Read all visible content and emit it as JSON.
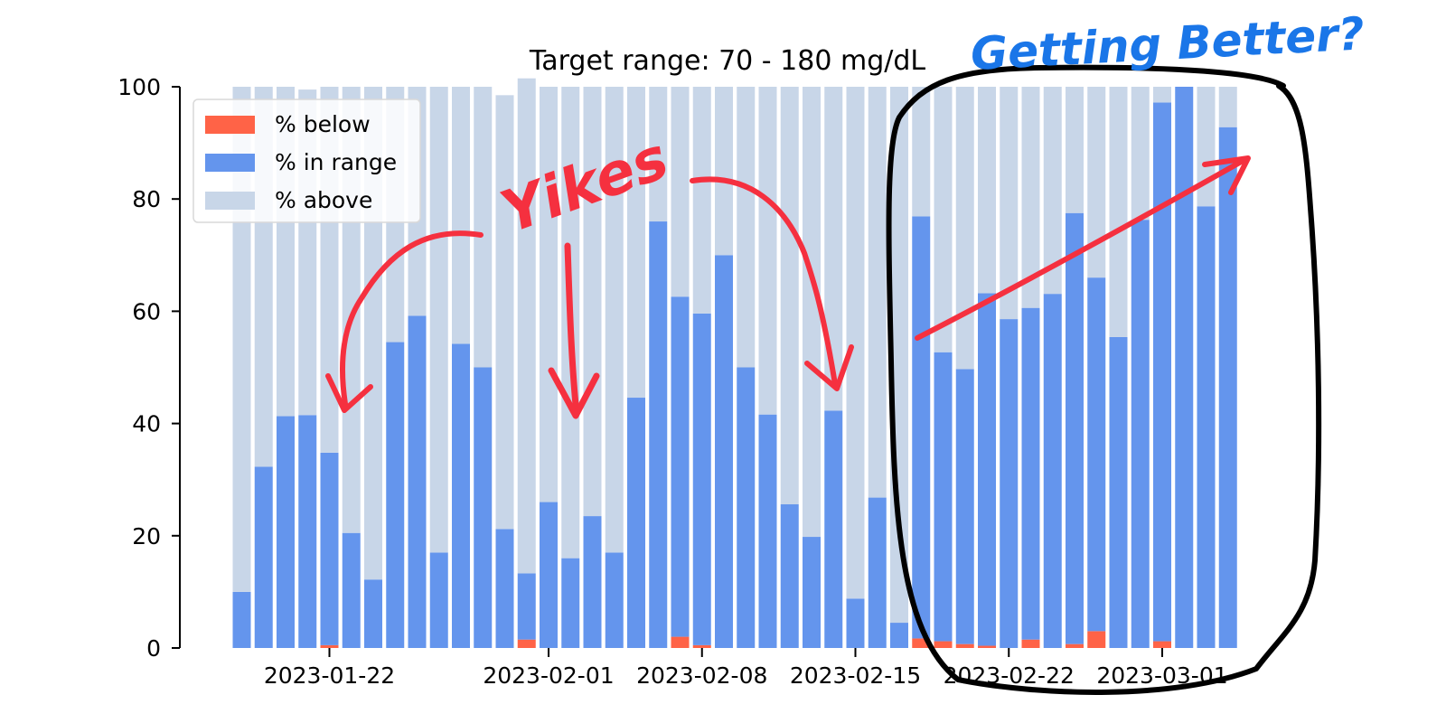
{
  "chart_data": {
    "type": "bar",
    "stacked": true,
    "title": "Target range: 70 - 180 mg/dL",
    "xlabel": "",
    "ylabel": "",
    "ylim": [
      0,
      100
    ],
    "yticks": [
      0,
      20,
      40,
      60,
      80,
      100
    ],
    "grid": false,
    "legend_position": "top-left",
    "start_date": "2023-01-18",
    "dates": [
      "2023-01-18",
      "2023-01-19",
      "2023-01-20",
      "2023-01-21",
      "2023-01-22",
      "2023-01-23",
      "2023-01-24",
      "2023-01-25",
      "2023-01-26",
      "2023-01-27",
      "2023-01-28",
      "2023-01-29",
      "2023-01-30",
      "2023-01-31",
      "2023-02-01",
      "2023-02-02",
      "2023-02-03",
      "2023-02-04",
      "2023-02-05",
      "2023-02-06",
      "2023-02-07",
      "2023-02-08",
      "2023-02-09",
      "2023-02-10",
      "2023-02-11",
      "2023-02-12",
      "2023-02-13",
      "2023-02-14",
      "2023-02-15",
      "2023-02-16",
      "2023-02-17",
      "2023-02-18",
      "2023-02-19",
      "2023-02-20",
      "2023-02-21",
      "2023-02-22",
      "2023-02-23",
      "2023-02-24",
      "2023-02-25",
      "2023-02-26",
      "2023-02-27",
      "2023-02-28",
      "2023-03-01",
      "2023-03-02",
      "2023-03-03",
      "2023-03-04",
      "2023-03-05"
    ],
    "xtick_labels": [
      "2023-01-22",
      "2023-02-01",
      "2023-02-08",
      "2023-02-15",
      "2023-02-22",
      "2023-03-01"
    ],
    "series": [
      {
        "name": "% below",
        "color": "#ff6347",
        "values": [
          0,
          0,
          0,
          0,
          0.5,
          0,
          0,
          0,
          0,
          0,
          0,
          0,
          0,
          1.5,
          0,
          0,
          0,
          0,
          0,
          0,
          2.0,
          0.5,
          0,
          0,
          0,
          0,
          0,
          0,
          0,
          0,
          0,
          1.7,
          1.2,
          0.7,
          0.4,
          0,
          1.5,
          0,
          0.7,
          3.0,
          0,
          0,
          1.2,
          0,
          0,
          0,
          0
        ]
      },
      {
        "name": "% in range",
        "color": "#6495ed",
        "values": [
          10,
          32.3,
          41.3,
          41.5,
          34.3,
          20.5,
          12.2,
          54.5,
          59.2,
          17,
          54.2,
          50,
          21.2,
          11.8,
          26,
          16,
          23.5,
          17,
          44.6,
          76,
          60.6,
          59.1,
          70,
          50,
          41.6,
          25.6,
          19.8,
          42.3,
          8.8,
          26.8,
          4.5,
          75.2,
          51.5,
          49,
          62.8,
          58.6,
          59.1,
          63.1,
          76.8,
          63,
          55.4,
          76.3,
          96,
          100,
          78.7,
          92.8,
          0
        ]
      },
      {
        "name": "% above",
        "color": "#c8d6e8",
        "values": [
          90,
          67.7,
          58.7,
          58,
          65.2,
          79.5,
          87.8,
          45.5,
          40.8,
          83,
          45.8,
          50,
          77.3,
          88.2,
          74,
          84,
          76.5,
          83,
          55.4,
          24,
          37.4,
          40.4,
          30,
          50,
          58.4,
          74.4,
          80.2,
          57.7,
          91.2,
          73.2,
          95.5,
          23.1,
          47.3,
          50.3,
          36.8,
          41.4,
          39.4,
          36.9,
          22.5,
          34,
          44.6,
          23.7,
          2.8,
          0,
          21.3,
          7.2,
          0
        ]
      }
    ]
  },
  "annotations": {
    "yikes": "Yikes",
    "getting_better": "Getting Better?"
  }
}
